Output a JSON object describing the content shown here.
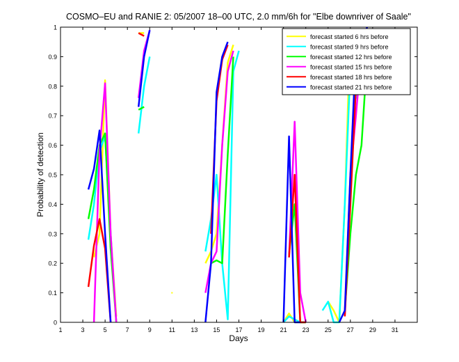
{
  "chart_data": {
    "type": "line",
    "title": "COSMO–EU and RANIE 2: 05/2007 18–00 UTC, 2.0 mm/6h for \"Elbe downriver of Saale\"",
    "xlabel": "Days",
    "ylabel": "Probability of detection",
    "xlim": [
      1,
      33
    ],
    "ylim": [
      0,
      1
    ],
    "xticks": [
      1,
      3,
      5,
      7,
      9,
      11,
      13,
      15,
      17,
      19,
      21,
      23,
      25,
      27,
      29,
      31
    ],
    "xtick_labels": [
      "1",
      "3",
      "5",
      "7",
      "9",
      "11",
      "13",
      "15",
      "17",
      "19",
      "21",
      "23",
      "25",
      "27",
      "29",
      "31"
    ],
    "yticks": [
      0,
      0.1,
      0.2,
      0.3,
      0.4,
      0.5,
      0.6,
      0.7,
      0.8,
      0.9,
      1
    ],
    "ytick_labels": [
      "0",
      "0.1",
      "0.2",
      "0.3",
      "0.4",
      "0.5",
      "0.6",
      "0.7",
      "0.8",
      "0.9",
      "1"
    ],
    "grid": false,
    "legend_position": "top-right",
    "series": [
      {
        "name": "forecast started 6 hrs before",
        "color": "#ffff00",
        "segments": [
          [
            [
              4,
              0.22
            ],
            [
              4.5,
              0.3
            ],
            [
              5,
              0.82
            ],
            [
              5.5,
              0.3
            ],
            [
              6,
              0.02
            ]
          ],
          [
            [
              8,
              0.98
            ],
            [
              8.5,
              0.98
            ]
          ],
          [
            [
              11,
              0.1
            ]
          ],
          [
            [
              14,
              0.2
            ],
            [
              14.5,
              0.24
            ],
            [
              15,
              0.3
            ],
            [
              15.5,
              0.6
            ],
            [
              16,
              0.88
            ],
            [
              16.5,
              0.94
            ]
          ],
          [
            [
              21,
              0.0
            ],
            [
              21.5,
              0.03
            ],
            [
              22,
              0.0
            ],
            [
              22.5,
              0.0
            ],
            [
              23,
              0.0
            ]
          ],
          [
            [
              25,
              0.07
            ],
            [
              25.5,
              0.04
            ],
            [
              26,
              0.0
            ],
            [
              26.5,
              0.4
            ],
            [
              27,
              0.99
            ],
            [
              27.5,
              0.85
            ],
            [
              28,
              0.9
            ],
            [
              28.5,
              1.0
            ]
          ]
        ]
      },
      {
        "name": "forecast started 9 hrs before",
        "color": "#00ffff",
        "segments": [
          [
            [
              3.5,
              0.28
            ],
            [
              4,
              0.4
            ],
            [
              4.5,
              0.58
            ],
            [
              5,
              0.63
            ],
            [
              5.5,
              0.3
            ],
            [
              6,
              0.0
            ]
          ],
          [
            [
              8,
              0.64
            ],
            [
              8.5,
              0.8
            ],
            [
              9,
              0.9
            ]
          ],
          [
            [
              14,
              0.24
            ],
            [
              14.5,
              0.35
            ],
            [
              15,
              0.5
            ],
            [
              15.5,
              0.2
            ],
            [
              16,
              0.01
            ],
            [
              16.5,
              0.85
            ],
            [
              17,
              0.92
            ]
          ],
          [
            [
              21,
              0.0
            ],
            [
              21.5,
              0.02
            ],
            [
              22,
              0.01
            ],
            [
              22.5,
              0.0
            ],
            [
              23,
              0.0
            ]
          ],
          [
            [
              24.5,
              0.04
            ],
            [
              25,
              0.07
            ],
            [
              25.5,
              0.0
            ],
            [
              26,
              0.0
            ],
            [
              26.5,
              0.4
            ],
            [
              27,
              0.86
            ],
            [
              27.5,
              0.76
            ],
            [
              28,
              0.85
            ],
            [
              28.5,
              0.98
            ]
          ]
        ]
      },
      {
        "name": "forecast started 12 hrs before",
        "color": "#00ff00",
        "segments": [
          [
            [
              3.5,
              0.35
            ],
            [
              4,
              0.45
            ],
            [
              4.5,
              0.6
            ],
            [
              5,
              0.64
            ],
            [
              5.5,
              0.25
            ],
            [
              6,
              0.0
            ]
          ],
          [
            [
              8,
              0.72
            ],
            [
              8.5,
              0.73
            ]
          ],
          [
            [
              14.5,
              0.2
            ],
            [
              15,
              0.21
            ],
            [
              15.5,
              0.2
            ],
            [
              16,
              0.57
            ],
            [
              16.5,
              0.9
            ]
          ],
          [
            [
              21.5,
              0.23
            ],
            [
              22,
              0.4
            ],
            [
              22.5,
              0.0
            ],
            [
              23,
              0.0
            ]
          ],
          [
            [
              26.5,
              0.04
            ],
            [
              27,
              0.3
            ],
            [
              27.5,
              0.5
            ],
            [
              28,
              0.6
            ],
            [
              28.5,
              0.9
            ]
          ]
        ]
      },
      {
        "name": "forecast started 15 hrs before",
        "color": "#ff00ff",
        "segments": [
          [
            [
              4,
              0.0
            ],
            [
              4.5,
              0.58
            ],
            [
              5,
              0.81
            ],
            [
              5.5,
              0.3
            ],
            [
              6,
              0.0
            ]
          ],
          [
            [
              8,
              0.76
            ],
            [
              8.5,
              0.92
            ],
            [
              9,
              0.99
            ]
          ],
          [
            [
              14,
              0.1
            ],
            [
              14.5,
              0.2
            ],
            [
              15,
              0.24
            ],
            [
              15.5,
              0.6
            ],
            [
              16,
              0.85
            ],
            [
              16.5,
              0.92
            ]
          ],
          [
            [
              21.5,
              0.22
            ],
            [
              22,
              0.68
            ],
            [
              22.5,
              0.1
            ],
            [
              23,
              0.0
            ]
          ],
          [
            [
              26.5,
              0.02
            ],
            [
              27,
              0.5
            ],
            [
              27.5,
              0.7
            ],
            [
              28,
              0.92
            ],
            [
              28.5,
              0.99
            ]
          ]
        ]
      },
      {
        "name": "forecast started 18 hrs before",
        "color": "#ff0000",
        "segments": [
          [
            [
              3.5,
              0.12
            ],
            [
              4,
              0.26
            ],
            [
              4.5,
              0.35
            ],
            [
              5,
              0.25
            ],
            [
              5.5,
              0.0
            ]
          ],
          [
            [
              8,
              0.98
            ],
            [
              8.5,
              0.97
            ]
          ],
          [
            [
              14.5,
              0.3
            ],
            [
              15,
              0.75
            ],
            [
              15.5,
              0.89
            ],
            [
              16,
              0.94
            ]
          ],
          [
            [
              21.5,
              0.22
            ],
            [
              22,
              0.5
            ],
            [
              22.5,
              0.0
            ],
            [
              23,
              0.0
            ]
          ],
          [
            [
              26.5,
              0.02
            ],
            [
              27,
              0.4
            ],
            [
              27.5,
              0.8
            ],
            [
              28,
              0.97
            ],
            [
              28.5,
              0.99
            ]
          ]
        ]
      },
      {
        "name": "forecast started 21 hrs before",
        "color": "#0000ff",
        "segments": [
          [
            [
              3.5,
              0.45
            ],
            [
              4,
              0.52
            ],
            [
              4.5,
              0.65
            ],
            [
              5,
              0.3
            ],
            [
              5.5,
              0.0
            ]
          ],
          [
            [
              8,
              0.73
            ],
            [
              8.5,
              0.9
            ],
            [
              9,
              0.99
            ]
          ],
          [
            [
              14,
              0.0
            ],
            [
              14.5,
              0.2
            ],
            [
              15,
              0.78
            ],
            [
              15.5,
              0.9
            ],
            [
              16,
              0.95
            ]
          ],
          [
            [
              21,
              0.0
            ],
            [
              21.5,
              0.63
            ],
            [
              22,
              0.0
            ],
            [
              22.5,
              0.0
            ]
          ],
          [
            [
              26,
              0.0
            ],
            [
              26.5,
              0.04
            ],
            [
              27,
              0.5
            ],
            [
              27.5,
              0.92
            ],
            [
              28,
              0.95
            ],
            [
              28.5,
              1.0
            ]
          ]
        ]
      }
    ]
  }
}
